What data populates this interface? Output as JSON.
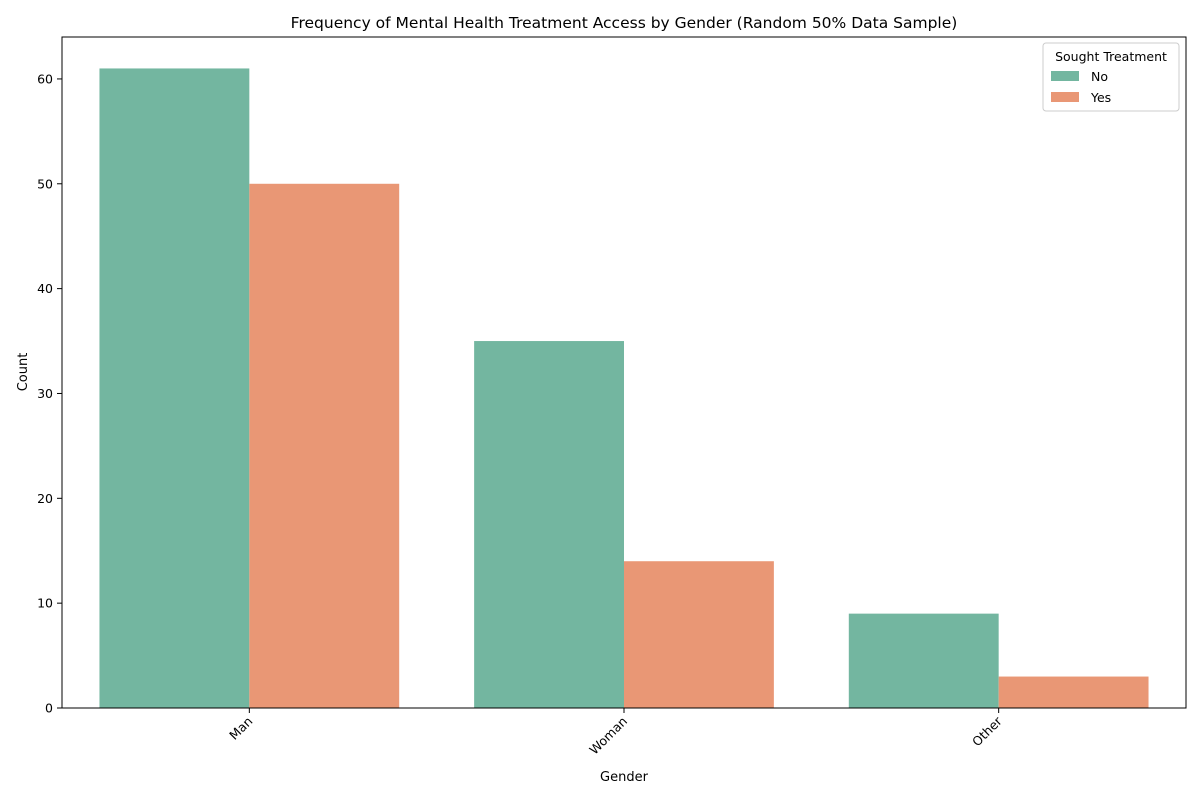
{
  "chart_data": {
    "type": "bar",
    "title": "Frequency of Mental Health Treatment Access by Gender (Random 50% Data Sample)",
    "xlabel": "Gender",
    "ylabel": "Count",
    "categories": [
      "Man",
      "Woman",
      "Other"
    ],
    "series": [
      {
        "name": "No",
        "values": [
          61,
          35,
          9
        ],
        "color": "#73b6a0"
      },
      {
        "name": "Yes",
        "values": [
          50,
          14,
          3
        ],
        "color": "#e99775"
      }
    ],
    "ylim": [
      0,
      64
    ],
    "yticks": [
      "0",
      "10",
      "20",
      "30",
      "40",
      "50",
      "60"
    ],
    "legend": {
      "title": "Sought Treatment",
      "position": "top-right"
    },
    "grid": false
  }
}
